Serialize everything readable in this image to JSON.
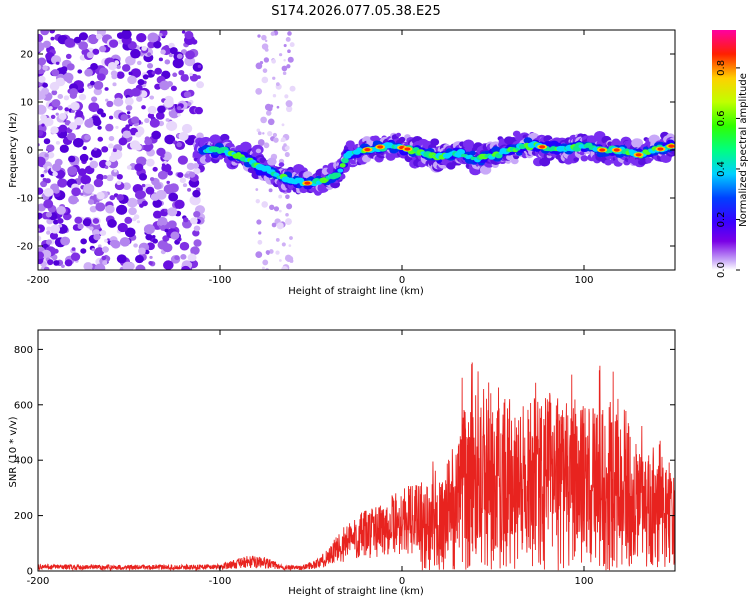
{
  "title": "S174.2026.077.05.38.E25",
  "chart_data": [
    {
      "type": "heatmap",
      "title": "S174.2026.077.05.38.E25",
      "xlabel": "Height of straight line (km)",
      "ylabel": "Frequency (Hz)",
      "xlim": [
        -200,
        150
      ],
      "ylim": [
        -25,
        25
      ],
      "xticks": [
        -200,
        -100,
        0,
        100
      ],
      "yticks": [
        -20,
        -10,
        0,
        10,
        20
      ],
      "colorbar": {
        "label": "Normalized spectral amplitude",
        "range": [
          0,
          0.95
        ],
        "ticks": [
          "0.0",
          "0.2",
          "0.4",
          "0.6",
          "0.8"
        ]
      },
      "ridge_x": [
        -110,
        -100,
        -90,
        -80,
        -70,
        -60,
        -50,
        -40,
        -35,
        -30,
        -20,
        -10,
        0,
        10,
        20,
        30,
        40,
        50,
        60,
        70,
        80,
        90,
        100,
        110,
        120,
        130,
        140,
        150
      ],
      "ridge_y": [
        0,
        0,
        -1,
        -3,
        -5,
        -6.5,
        -7,
        -6,
        -5,
        -1,
        0,
        0.8,
        0.5,
        -0.5,
        -1.5,
        -0.5,
        -2,
        -1,
        0,
        1,
        0.5,
        0,
        1,
        0,
        0,
        -1,
        0,
        1
      ]
    },
    {
      "type": "line",
      "xlabel": "Height of straight line (km)",
      "ylabel": "SNR (10 * v/v)",
      "xlim": [
        -200,
        150
      ],
      "ylim": [
        0,
        870
      ],
      "xticks": [
        -200,
        -100,
        0,
        100
      ],
      "yticks": [
        0,
        200,
        400,
        600,
        800
      ],
      "color": "#e8231f",
      "envelope_x": [
        -200,
        -150,
        -120,
        -100,
        -85,
        -75,
        -65,
        -55,
        -45,
        -38,
        -30,
        -20,
        -10,
        0,
        10,
        20,
        25,
        35,
        50,
        65,
        80,
        95,
        110,
        120,
        130,
        140,
        150
      ],
      "envelope_y": [
        25,
        22,
        22,
        25,
        55,
        50,
        20,
        20,
        50,
        110,
        180,
        220,
        260,
        300,
        320,
        330,
        400,
        600,
        700,
        600,
        650,
        600,
        620,
        550,
        450,
        400,
        350
      ]
    }
  ]
}
